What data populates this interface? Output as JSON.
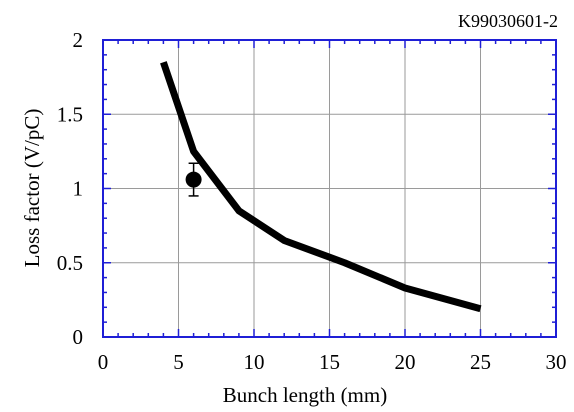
{
  "figure_id": "K99030601-2",
  "chart_data": {
    "type": "line",
    "title": "",
    "xlabel": "Bunch length (mm)",
    "ylabel": "Loss factor (V/pC)",
    "xlim": [
      0,
      30
    ],
    "ylim": [
      0,
      2
    ],
    "xticks": [
      0,
      5,
      10,
      15,
      20,
      25,
      30
    ],
    "xtick_labels": [
      "0",
      "5",
      "10",
      "15",
      "20",
      "25",
      "30"
    ],
    "yticks": [
      0,
      0.5,
      1,
      1.5,
      2
    ],
    "ytick_labels": [
      "0",
      "0.5",
      "1",
      "1.5",
      "2"
    ],
    "grid": true,
    "series": [
      {
        "type": "line",
        "x": [
          4,
          6,
          9,
          12,
          16,
          20,
          25
        ],
        "y": [
          1.85,
          1.25,
          0.85,
          0.65,
          0.5,
          0.33,
          0.19
        ]
      },
      {
        "type": "scatter",
        "x": [
          6
        ],
        "y": [
          1.06
        ],
        "yerr": [
          0.11
        ]
      }
    ]
  }
}
